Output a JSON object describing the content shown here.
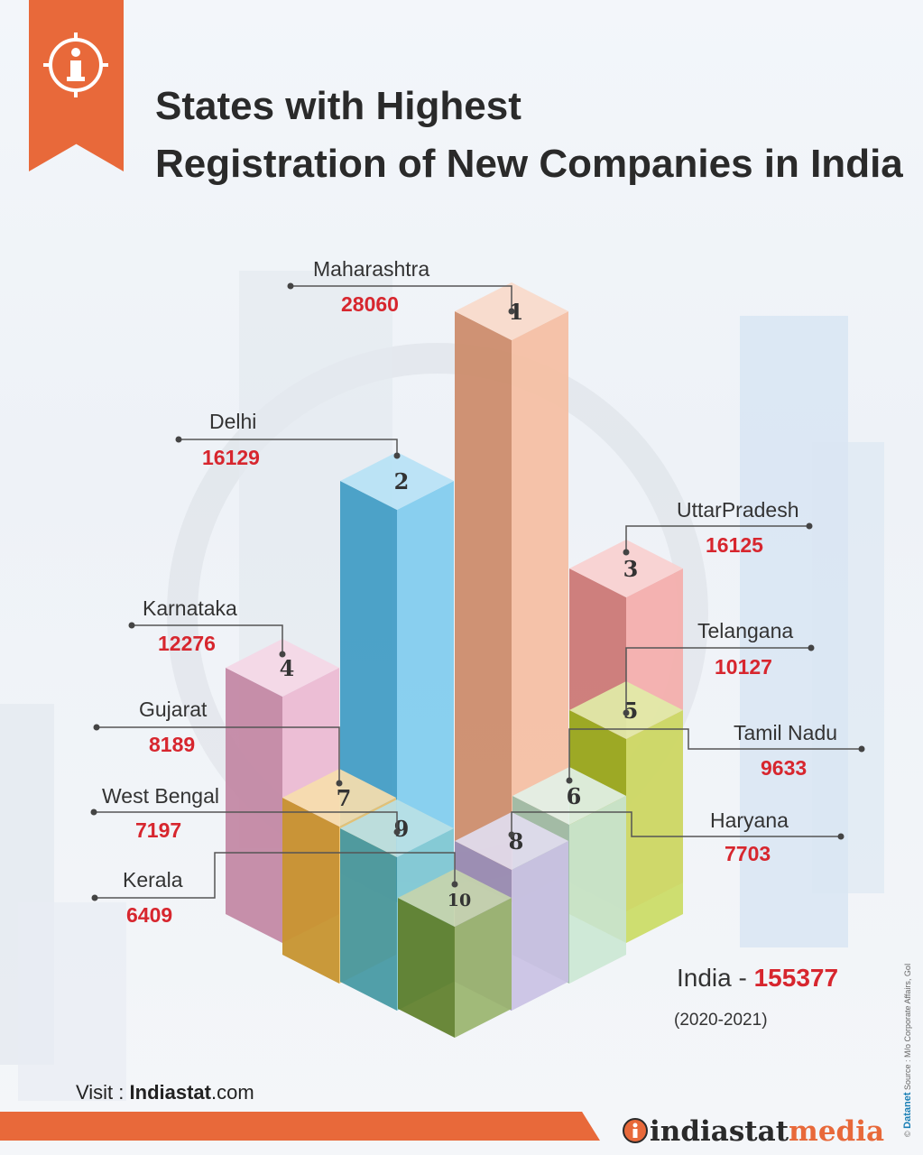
{
  "title_line1": "States with Highest",
  "title_line2": "Registration of New Companies in India",
  "chart_data": {
    "type": "bar",
    "title": "States with Highest Registration of New Companies in India",
    "categories": [
      "Maharashtra",
      "Delhi",
      "UttarPradesh",
      "Karnataka",
      "Telangana",
      "Tamil Nadu",
      "Gujarat",
      "Haryana",
      "West Bengal",
      "Kerala"
    ],
    "ranks": [
      "1",
      "2",
      "3",
      "4",
      "5",
      "6",
      "7",
      "8",
      "9",
      "10"
    ],
    "values": [
      28060,
      16129,
      16125,
      12276,
      10127,
      9633,
      8189,
      7703,
      7197,
      6409
    ],
    "value_labels": [
      "28060",
      "16129",
      "16125",
      "12276",
      "10127",
      "9633",
      "8189",
      "7703",
      "7197",
      "6409"
    ],
    "colors": [
      "#f0a27a",
      "#4ab6e6",
      "#ef8a86",
      "#e49cc0",
      "#b4cc22",
      "#b6dcc2",
      "#e9a930",
      "#b3a7d8",
      "#4fb2bf",
      "#6f9430"
    ]
  },
  "total": {
    "label": "India - ",
    "value": "155377",
    "period": "(2020-2021)"
  },
  "footer": {
    "visit_prefix": "Visit : ",
    "visit_bold": "Indiastat",
    "visit_suffix": ".com",
    "logo_dark": "indiastat",
    "logo_accent": "media"
  },
  "source": {
    "brand": "Datanet",
    "text": "Source : M/o Corporate Affairs, GoI"
  },
  "accent_color": "#e8693a",
  "value_color": "#d7262e"
}
